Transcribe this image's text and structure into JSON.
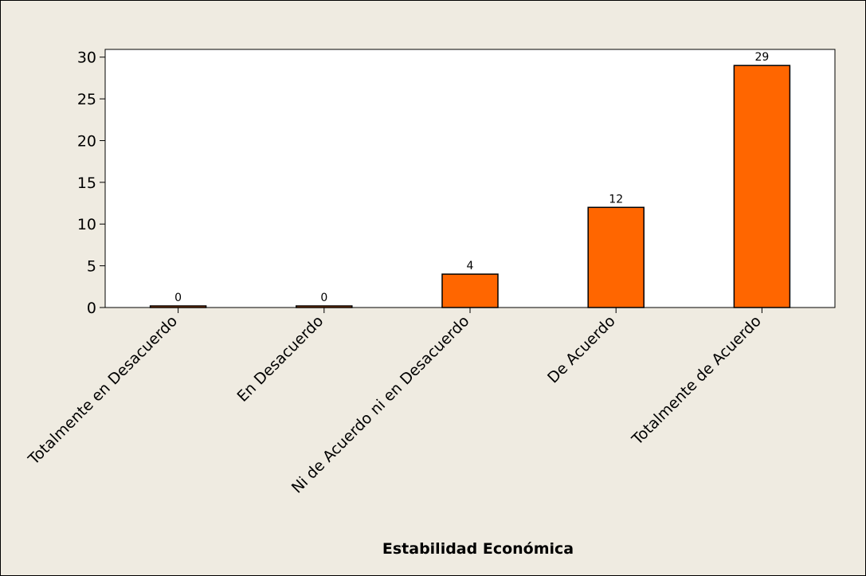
{
  "chart_data": {
    "type": "bar",
    "categories": [
      "Totalmente en Desacuerdo",
      "En Desacuerdo",
      "Ni de Acuerdo ni en Desacuerdo",
      "De Acuerdo",
      "Totalmente de Acuerdo"
    ],
    "values": [
      0,
      0,
      4,
      12,
      29
    ],
    "data_labels": [
      "0",
      "0",
      "4",
      "12",
      "29"
    ],
    "xlabel": "Estabilidad Económica",
    "ylabel": "",
    "ylim": [
      0,
      30
    ],
    "yticks": [
      0,
      5,
      10,
      15,
      20,
      25,
      30
    ],
    "grid": false,
    "legend": "none",
    "colors": {
      "bar_fill": "#ff6600",
      "bar_stroke": "#000000",
      "plot_background": "#ffffff",
      "figure_background": "#efebe1"
    }
  }
}
